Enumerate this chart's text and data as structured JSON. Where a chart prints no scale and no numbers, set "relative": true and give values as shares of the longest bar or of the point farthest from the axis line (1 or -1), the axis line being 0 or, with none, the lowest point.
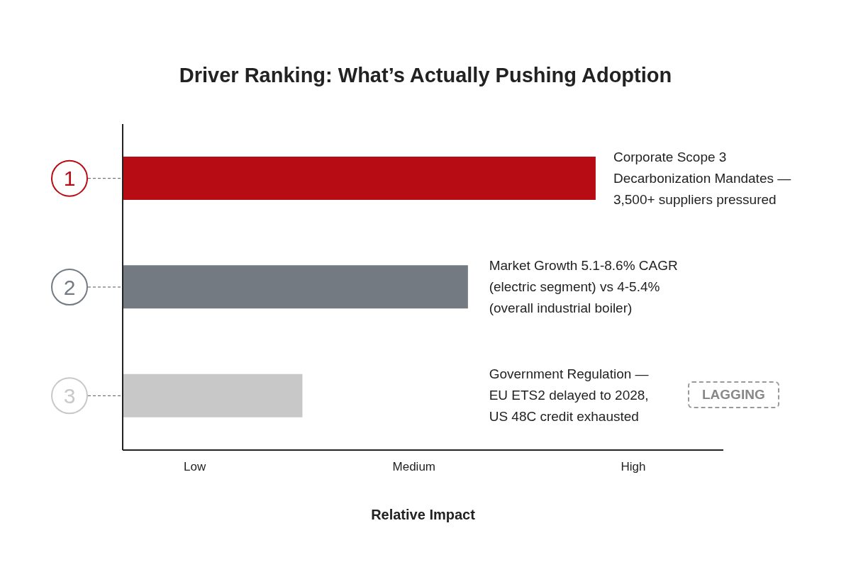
{
  "chart_data": {
    "type": "bar",
    "orientation": "horizontal",
    "relative": true,
    "title": "Driver Ranking: What’s Actually Pushing Adoption",
    "xlabel": "Relative Impact",
    "categories": [
      "1",
      "2",
      "3"
    ],
    "values": [
      1,
      0.73,
      0.38
    ],
    "colors": [
      "#b80c15",
      "#737a82",
      "#c8c8c8"
    ],
    "grid": false,
    "annotations": [
      "Corporate Scope 3\nDecarbonization Mandates —\n3,500+ suppliers pressured",
      "Market Growth 5.1-8.6% CAGR\n(electric segment) vs 4-5.4%\n(overall industrial boiler)",
      "Government Regulation —\nEU ETS2 delayed to 2028,\nUS 48C credit exhausted",
      "LAGGING",
      "Low",
      "Medium",
      "High"
    ]
  }
}
